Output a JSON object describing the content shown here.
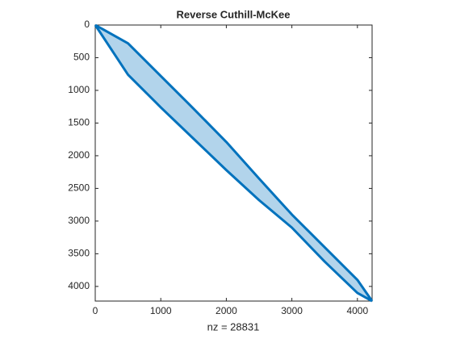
{
  "chart_data": {
    "type": "spy",
    "title": "Reverse Cuthill-McKee",
    "xlabel": "nz = 28831",
    "color": "#0072bd",
    "x": [
      0,
      500,
      1000,
      1500,
      2000,
      2500,
      3000,
      3500,
      4000,
      4224
    ],
    "ylow": [
      0,
      280,
      780,
      1280,
      1790,
      2350,
      2900,
      3400,
      3900,
      4224
    ],
    "yhigh": [
      0,
      760,
      1260,
      1740,
      2220,
      2680,
      3100,
      3620,
      4100,
      4224
    ],
    "xlim": [
      0,
      4224
    ],
    "ylim": [
      0,
      4224
    ],
    "xticks": [
      0,
      1000,
      2000,
      3000,
      4000
    ],
    "yticks": [
      0,
      500,
      1000,
      1500,
      2000,
      2500,
      3000,
      3500,
      4000
    ]
  }
}
